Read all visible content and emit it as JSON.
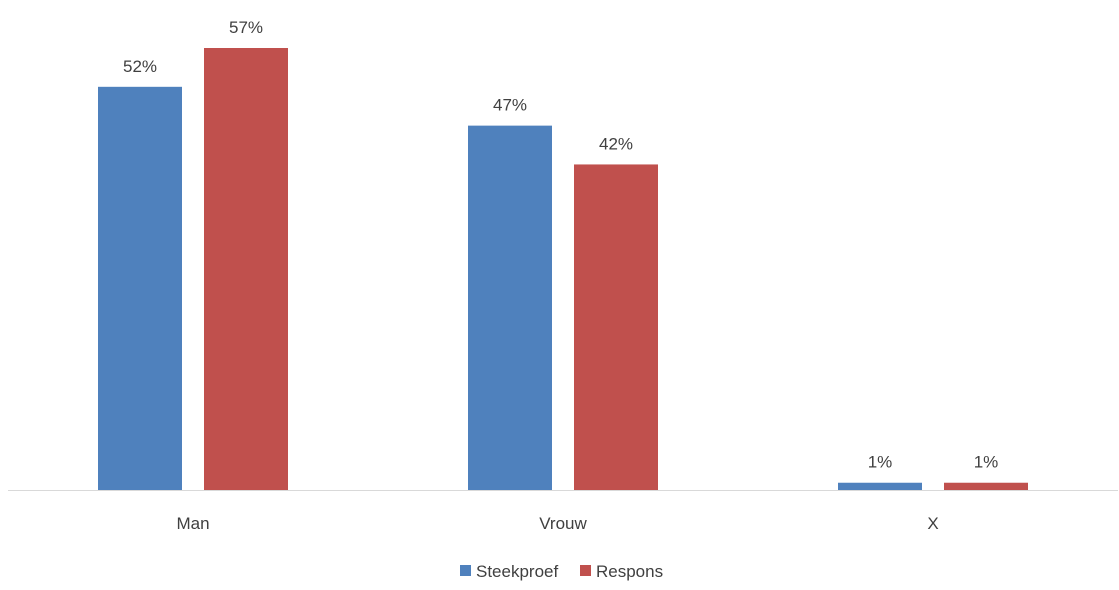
{
  "chart_data": {
    "type": "bar",
    "categories": [
      "Man",
      "Vrouw",
      "X"
    ],
    "series": [
      {
        "name": "Steekproef",
        "values": [
          52,
          47,
          1
        ],
        "labels": [
          "52%",
          "47%",
          "1%"
        ]
      },
      {
        "name": "Respons",
        "values": [
          57,
          42,
          1
        ],
        "labels": [
          "57%",
          "42%",
          "1%"
        ]
      }
    ],
    "ylim": [
      0,
      57
    ],
    "grid": false,
    "legend_position": "bottom",
    "colors": {
      "Steekproef": "#4F81BD",
      "Respons": "#C0504D",
      "axis": "#D9D9D9",
      "text": "#404040"
    }
  }
}
